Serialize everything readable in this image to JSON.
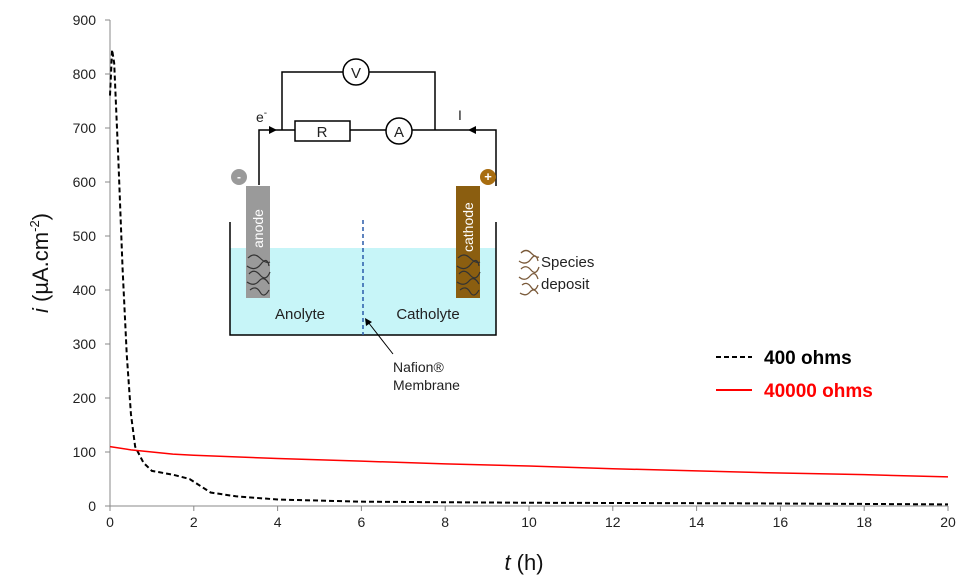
{
  "chart_data": {
    "type": "line",
    "xlabel": {
      "italic": "t",
      "rest": " (h)"
    },
    "ylabel": {
      "italic": "i",
      "rest": " (µA.cm",
      "sup": "-2",
      "close": ")"
    },
    "xlim": [
      0,
      20
    ],
    "ylim": [
      0,
      900
    ],
    "xticks": [
      0,
      2,
      4,
      6,
      8,
      10,
      12,
      14,
      16,
      18,
      20
    ],
    "yticks": [
      0,
      100,
      200,
      300,
      400,
      500,
      600,
      700,
      800,
      900
    ],
    "grid": false,
    "legend_position": "right",
    "series": [
      {
        "name": "400 ohms",
        "color": "#000000",
        "dash": true,
        "points": [
          [
            0,
            760
          ],
          [
            0.05,
            845
          ],
          [
            0.1,
            820
          ],
          [
            0.2,
            640
          ],
          [
            0.3,
            440
          ],
          [
            0.4,
            280
          ],
          [
            0.5,
            170
          ],
          [
            0.6,
            110
          ],
          [
            0.8,
            80
          ],
          [
            1.0,
            65
          ],
          [
            1.5,
            58
          ],
          [
            1.9,
            50
          ],
          [
            2.2,
            35
          ],
          [
            2.4,
            25
          ],
          [
            3.0,
            18
          ],
          [
            4.0,
            12
          ],
          [
            6.0,
            8
          ],
          [
            10.0,
            6
          ],
          [
            15.0,
            5
          ],
          [
            20.0,
            3
          ]
        ]
      },
      {
        "name": "40000 ohms",
        "color": "#ff0000",
        "dash": false,
        "points": [
          [
            0,
            110
          ],
          [
            0.5,
            104
          ],
          [
            1.0,
            100
          ],
          [
            1.5,
            96
          ],
          [
            2.0,
            94
          ],
          [
            4.0,
            88
          ],
          [
            6.0,
            83
          ],
          [
            8.0,
            78
          ],
          [
            10.0,
            74
          ],
          [
            12.0,
            69
          ],
          [
            14.0,
            65
          ],
          [
            16.0,
            61
          ],
          [
            18.0,
            58
          ],
          [
            20.0,
            54
          ]
        ]
      }
    ]
  },
  "inset": {
    "voltmeter": "V",
    "resistor": "R",
    "ammeter": "A",
    "electron_label": "e",
    "electron_sup": "-",
    "current_label": "I",
    "anode_sign": "-",
    "cathode_sign": "+",
    "anode": "anode",
    "cathode": "cathode",
    "anolyte": "Anolyte",
    "catholyte": "Catholyte",
    "membrane_line1": "Nafion®",
    "membrane_line2": "Membrane",
    "species_line1": "Species",
    "species_line2": "deposit",
    "colors": {
      "electrolyte": "#c7f5f8",
      "anode": "#9a9a9a",
      "anode_badge": "#9a9a9a",
      "cathode": "#8b5e10",
      "cathode_badge": "#a86d10",
      "membrane": "#2a5caa"
    }
  }
}
